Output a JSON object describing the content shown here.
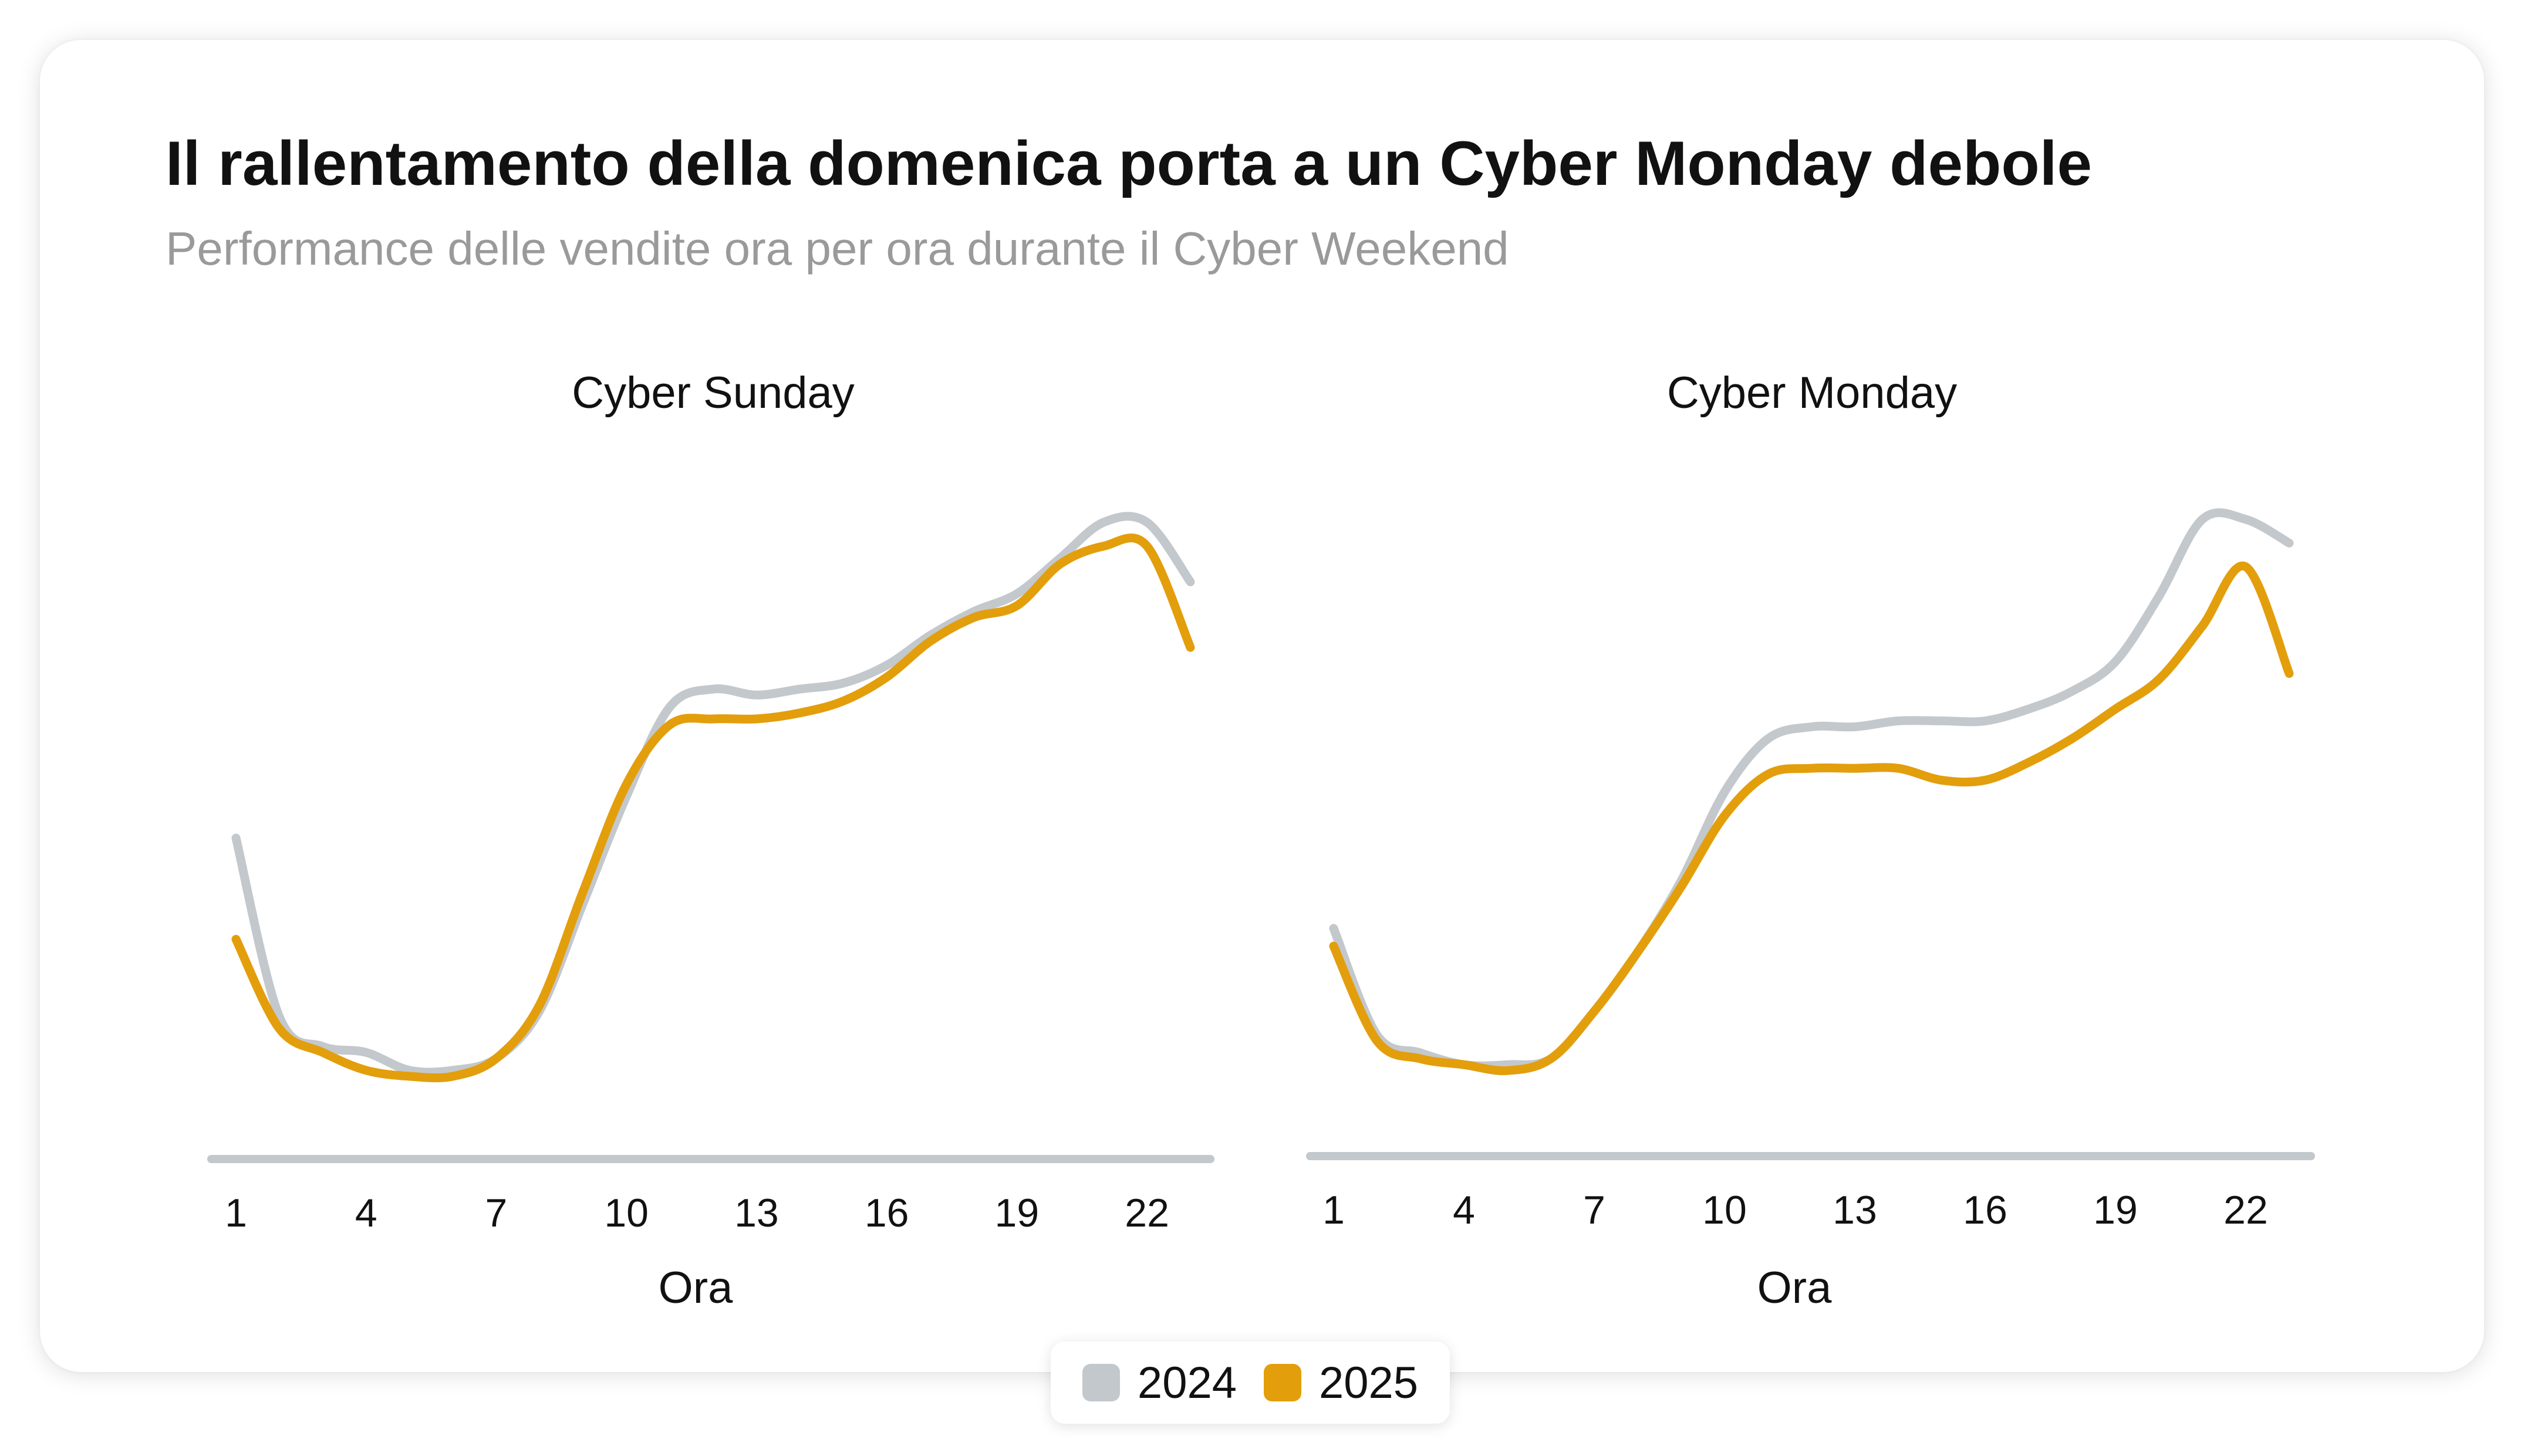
{
  "title": "Il rallentamento della domenica porta a un Cyber Monday debole",
  "subtitle": "Performance delle vendite ora per ora durante il Cyber Weekend",
  "colors": {
    "2024": "#c3c8cd",
    "2025": "#e39e0c",
    "axis": "#c3c8cd"
  },
  "legend": [
    {
      "label": "2024",
      "color": "#c3c8cd"
    },
    {
      "label": "2025",
      "color": "#e39e0c"
    }
  ],
  "chart_data": [
    {
      "type": "line",
      "title": "Cyber Sunday",
      "xlabel": "Ora",
      "ylabel": "",
      "x_ticks": [
        1,
        4,
        7,
        10,
        13,
        16,
        19,
        22
      ],
      "x": [
        1,
        2,
        3,
        4,
        5,
        6,
        7,
        8,
        9,
        10,
        11,
        12,
        13,
        14,
        15,
        16,
        17,
        18,
        19,
        20,
        21,
        22,
        23
      ],
      "ylim": [
        0,
        100
      ],
      "grid": false,
      "legend_position": "bottom",
      "series": [
        {
          "name": "2024",
          "values": [
            47,
            17,
            12,
            11,
            8,
            8,
            10,
            18,
            36,
            54,
            69,
            72,
            71,
            72,
            73,
            76,
            81,
            85,
            88,
            94,
            100,
            100,
            90
          ]
        },
        {
          "name": "2025",
          "values": [
            30,
            15,
            11,
            8,
            7,
            7,
            10,
            19,
            38,
            56,
            66,
            67,
            67,
            68,
            70,
            74,
            80,
            84,
            86,
            93,
            96,
            96,
            79
          ]
        }
      ]
    },
    {
      "type": "line",
      "title": "Cyber Monday",
      "xlabel": "Ora",
      "ylabel": "",
      "x_ticks": [
        1,
        4,
        7,
        10,
        13,
        16,
        19,
        22
      ],
      "x": [
        1,
        2,
        3,
        4,
        5,
        6,
        7,
        8,
        9,
        10,
        11,
        12,
        13,
        14,
        15,
        16,
        17,
        18,
        19,
        20,
        21,
        22,
        23
      ],
      "ylim": [
        0,
        100
      ],
      "grid": false,
      "legend_position": "bottom",
      "series": [
        {
          "name": "2024",
          "values": [
            31,
            13,
            10,
            8,
            8,
            9,
            17,
            27,
            39,
            54,
            63,
            65,
            65,
            66,
            66,
            66,
            68,
            71,
            76,
            87,
            100,
            100,
            96
          ]
        },
        {
          "name": "2025",
          "values": [
            28,
            12,
            9,
            8,
            7,
            9,
            17,
            27,
            38,
            50,
            57,
            58,
            58,
            58,
            56,
            56,
            59,
            63,
            68,
            73,
            82,
            92,
            74
          ]
        }
      ]
    }
  ]
}
